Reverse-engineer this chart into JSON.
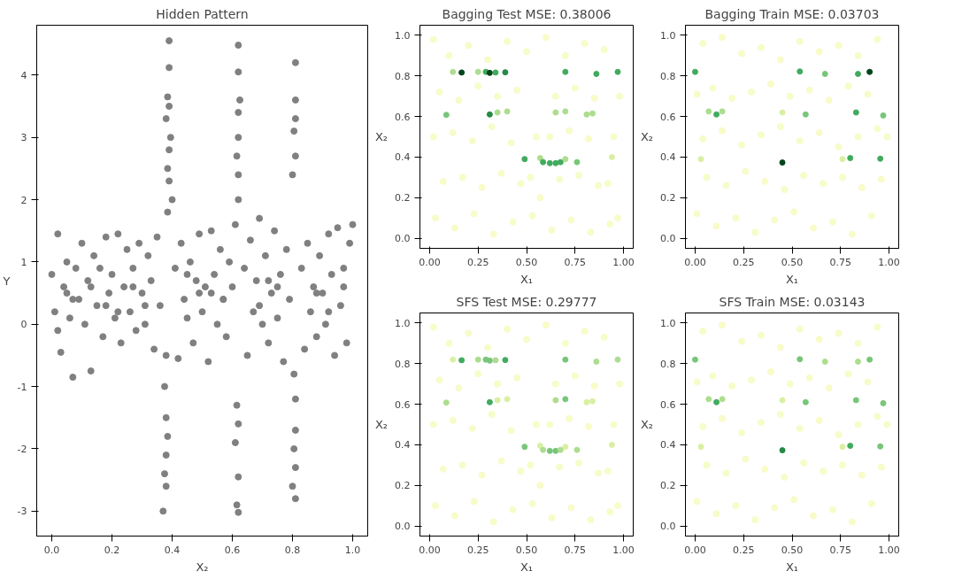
{
  "chart_data": [
    {
      "type": "scatter",
      "title": "Hidden Pattern",
      "xlabel": "X₂",
      "ylabel": "Y",
      "marker": "circle",
      "xlim": [
        -0.05,
        1.05
      ],
      "ylim": [
        -3.4,
        4.8
      ],
      "xticks": [
        {
          "value": 0,
          "label": "0.0"
        },
        {
          "value": 0.2,
          "label": "0.2"
        },
        {
          "value": 0.4,
          "label": "0.4"
        },
        {
          "value": 0.6,
          "label": "0.6"
        },
        {
          "value": 0.8,
          "label": "0.8"
        },
        {
          "value": 1,
          "label": "1.0"
        }
      ],
      "yticks": [
        -3,
        -2,
        -1,
        0,
        1,
        2,
        3,
        4
      ],
      "series": [
        {
          "color": "#808080",
          "x": [
            0.0,
            0.01,
            0.02,
            0.03,
            0.04,
            0.05,
            0.06,
            0.07,
            0.08,
            0.09,
            0.1,
            0.11,
            0.12,
            0.13,
            0.14,
            0.15,
            0.16,
            0.17,
            0.18,
            0.19,
            0.2,
            0.21,
            0.22,
            0.23,
            0.24,
            0.25,
            0.26,
            0.27,
            0.28,
            0.29,
            0.3,
            0.31,
            0.32,
            0.33,
            0.34,
            0.35,
            0.36,
            0.41,
            0.42,
            0.43,
            0.44,
            0.45,
            0.46,
            0.47,
            0.48,
            0.49,
            0.5,
            0.51,
            0.52,
            0.53,
            0.54,
            0.55,
            0.56,
            0.57,
            0.58,
            0.59,
            0.6,
            0.64,
            0.65,
            0.66,
            0.67,
            0.68,
            0.69,
            0.7,
            0.71,
            0.72,
            0.73,
            0.74,
            0.75,
            0.76,
            0.77,
            0.78,
            0.79,
            0.83,
            0.84,
            0.85,
            0.86,
            0.87,
            0.88,
            0.89,
            0.9,
            0.91,
            0.92,
            0.93,
            0.94,
            0.95,
            0.96,
            0.97,
            0.98,
            0.99,
            1.0,
            0.02,
            0.07,
            0.13,
            0.22,
            0.31,
            0.45,
            0.53,
            0.69,
            0.72,
            0.88,
            0.97,
            0.05,
            0.18,
            0.27,
            0.49,
            0.57,
            0.75,
            0.92
          ],
          "values": [
            0.8,
            0.2,
            1.45,
            -0.45,
            0.6,
            1.0,
            0.1,
            -0.85,
            0.9,
            0.4,
            1.3,
            0.0,
            0.7,
            -0.75,
            1.1,
            0.3,
            0.9,
            -0.2,
            1.4,
            0.5,
            0.8,
            0.1,
            1.45,
            -0.3,
            0.6,
            1.2,
            0.2,
            0.9,
            -0.1,
            1.3,
            0.5,
            0.0,
            1.1,
            0.7,
            -0.4,
            1.4,
            0.3,
            0.9,
            -0.55,
            1.3,
            0.4,
            0.1,
            1.0,
            -0.3,
            0.7,
            1.45,
            0.2,
            0.6,
            -0.6,
            1.5,
            0.8,
            0.0,
            1.2,
            0.4,
            -0.2,
            1.0,
            0.6,
            0.9,
            -0.5,
            1.35,
            0.2,
            0.7,
            1.7,
            0.0,
            1.1,
            -0.3,
            0.5,
            1.5,
            0.1,
            0.8,
            -0.6,
            1.2,
            0.4,
            0.9,
            -0.4,
            1.3,
            0.2,
            0.6,
            -0.2,
            1.1,
            0.5,
            0.0,
            1.45,
            0.8,
            -0.5,
            1.55,
            0.3,
            0.9,
            -0.3,
            1.3,
            1.6,
            -0.1,
            0.4,
            0.6,
            0.2,
            0.3,
            0.8,
            0.5,
            0.3,
            0.7,
            0.5,
            0.6,
            0.5,
            0.3,
            0.6,
            0.5,
            0.4,
            0.6,
            0.2
          ]
        },
        {
          "color": "#808080",
          "x": [
            0.39,
            0.39,
            0.385,
            0.39,
            0.38,
            0.395,
            0.39,
            0.385,
            0.39,
            0.4,
            0.385,
            0.38,
            0.375,
            0.38,
            0.385,
            0.38,
            0.375,
            0.38,
            0.37,
            0.62,
            0.62,
            0.625,
            0.62,
            0.62,
            0.615,
            0.62,
            0.62,
            0.61,
            0.615,
            0.62,
            0.61,
            0.62,
            0.615,
            0.62,
            0.81,
            0.81,
            0.81,
            0.805,
            0.81,
            0.8,
            0.805,
            0.81,
            0.81,
            0.805,
            0.81,
            0.8,
            0.81
          ],
          "values": [
            4.55,
            4.12,
            3.65,
            3.5,
            3.3,
            3.0,
            2.8,
            2.5,
            2.3,
            2.0,
            1.8,
            -0.5,
            -1.0,
            -1.5,
            -1.8,
            -2.1,
            -2.4,
            -2.6,
            -3.0,
            4.48,
            4.05,
            3.6,
            3.4,
            3.0,
            2.7,
            2.4,
            2.0,
            1.6,
            -1.3,
            -1.6,
            -1.9,
            -2.45,
            -2.9,
            -3.02,
            4.2,
            3.6,
            3.3,
            3.1,
            2.7,
            2.4,
            -0.8,
            -1.2,
            -1.7,
            -2.0,
            -2.3,
            -2.6,
            -2.8
          ]
        }
      ]
    },
    {
      "type": "scatter",
      "title": "Bagging Test MSE: 0.38006",
      "xlabel": "X₁",
      "ylabel": "X₂",
      "marker": "circle",
      "xlim": [
        -0.05,
        1.05
      ],
      "ylim": [
        -0.05,
        1.05
      ],
      "xticks": [
        {
          "value": 0,
          "label": "0.00"
        },
        {
          "value": 0.25,
          "label": "0.25"
        },
        {
          "value": 0.5,
          "label": "0.50"
        },
        {
          "value": 0.75,
          "label": "0.75"
        },
        {
          "value": 1,
          "label": "1.00"
        }
      ],
      "yticks": [
        {
          "value": 0,
          "label": "0.0"
        },
        {
          "value": 0.2,
          "label": "0.2"
        },
        {
          "value": 0.4,
          "label": "0.4"
        },
        {
          "value": 0.6,
          "label": "0.6"
        },
        {
          "value": 0.8,
          "label": "0.8"
        },
        {
          "value": 1,
          "label": "1.0"
        }
      ],
      "series": [
        {
          "color": "#f7fcc8",
          "x": [
            0.02,
            0.1,
            0.2,
            0.3,
            0.4,
            0.5,
            0.6,
            0.7,
            0.8,
            0.9,
            0.98,
            0.05,
            0.15,
            0.25,
            0.35,
            0.45,
            0.55,
            0.65,
            0.75,
            0.85,
            0.95,
            0.02,
            0.12,
            0.22,
            0.32,
            0.42,
            0.52,
            0.62,
            0.72,
            0.82,
            0.92,
            0.07,
            0.17,
            0.27,
            0.37,
            0.47,
            0.57,
            0.67,
            0.77,
            0.87,
            0.97,
            0.03,
            0.13,
            0.23,
            0.33,
            0.43,
            0.53,
            0.63,
            0.73,
            0.83,
            0.93
          ],
          "values": [
            0.98,
            0.9,
            0.95,
            0.88,
            0.97,
            0.92,
            0.99,
            0.9,
            0.96,
            0.93,
            0.7,
            0.72,
            0.68,
            0.75,
            0.7,
            0.73,
            0.5,
            0.7,
            0.74,
            0.69,
            0.5,
            0.5,
            0.52,
            0.48,
            0.55,
            0.47,
            0.3,
            0.5,
            0.53,
            0.49,
            0.27,
            0.28,
            0.3,
            0.25,
            0.32,
            0.27,
            0.2,
            0.29,
            0.31,
            0.26,
            0.1,
            0.1,
            0.05,
            0.12,
            0.02,
            0.08,
            0.11,
            0.04,
            0.09,
            0.03,
            0.07
          ]
        },
        {
          "x": [
            0.12,
            0.165,
            0.25,
            0.29,
            0.31,
            0.34,
            0.39,
            0.7,
            0.86,
            0.97,
            0.086,
            0.31,
            0.35,
            0.4,
            0.65,
            0.7,
            0.81,
            0.84,
            0.49,
            0.57,
            0.585,
            0.62,
            0.65,
            0.675,
            0.7,
            0.76,
            0.94
          ],
          "values": [
            0.82,
            0.817,
            0.82,
            0.82,
            0.815,
            0.817,
            0.818,
            0.82,
            0.81,
            0.82,
            0.608,
            0.61,
            0.62,
            0.625,
            0.62,
            0.625,
            0.61,
            0.615,
            0.39,
            0.395,
            0.375,
            0.37,
            0.37,
            0.375,
            0.39,
            0.375,
            0.4
          ],
          "colors": [
            "#addd8e",
            "#00441b",
            "#addd8e",
            "#41ab5d",
            "#00441b",
            "#41ab5d",
            "#238b45",
            "#41ab5d",
            "#41ab5d",
            "#41ab5d",
            "#78c679",
            "#238b45",
            "#addd8e",
            "#addd8e",
            "#addd8e",
            "#addd8e",
            "#addd8e",
            "#addd8e",
            "#41ab5d",
            "#addd8e",
            "#41ab5d",
            "#41ab5d",
            "#41ab5d",
            "#41ab5d",
            "#addd8e",
            "#78c679",
            "#d9f0a3"
          ]
        }
      ]
    },
    {
      "type": "scatter",
      "title": "Bagging Train MSE: 0.03703",
      "xlabel": "X₁",
      "ylabel": "X₂",
      "marker": "circle",
      "xlim": [
        -0.05,
        1.05
      ],
      "ylim": [
        -0.05,
        1.05
      ],
      "xticks": [
        {
          "value": 0,
          "label": "0.00"
        },
        {
          "value": 0.25,
          "label": "0.25"
        },
        {
          "value": 0.5,
          "label": "0.50"
        },
        {
          "value": 0.75,
          "label": "0.75"
        },
        {
          "value": 1,
          "label": "1.00"
        }
      ],
      "yticks": [
        {
          "value": 0,
          "label": "0.0"
        },
        {
          "value": 0.2,
          "label": "0.2"
        },
        {
          "value": 0.4,
          "label": "0.4"
        },
        {
          "value": 0.6,
          "label": "0.6"
        },
        {
          "value": 0.8,
          "label": "0.8"
        },
        {
          "value": 1,
          "label": "1.0"
        }
      ],
      "series": [
        {
          "color": "#f7fcc8",
          "x": [
            0.04,
            0.14,
            0.24,
            0.34,
            0.44,
            0.54,
            0.64,
            0.74,
            0.84,
            0.94,
            0.01,
            0.09,
            0.19,
            0.29,
            0.39,
            0.49,
            0.59,
            0.69,
            0.79,
            0.89,
            0.99,
            0.04,
            0.14,
            0.24,
            0.34,
            0.44,
            0.54,
            0.64,
            0.74,
            0.84,
            0.94,
            0.06,
            0.16,
            0.26,
            0.36,
            0.46,
            0.56,
            0.66,
            0.76,
            0.86,
            0.96,
            0.01,
            0.11,
            0.21,
            0.31,
            0.41,
            0.51,
            0.61,
            0.71,
            0.81,
            0.91
          ],
          "values": [
            0.96,
            0.99,
            0.91,
            0.94,
            0.88,
            0.97,
            0.92,
            0.95,
            0.9,
            0.98,
            0.71,
            0.74,
            0.69,
            0.72,
            0.76,
            0.7,
            0.73,
            0.68,
            0.75,
            0.71,
            0.5,
            0.49,
            0.53,
            0.46,
            0.51,
            0.55,
            0.48,
            0.52,
            0.45,
            0.5,
            0.54,
            0.3,
            0.26,
            0.33,
            0.28,
            0.24,
            0.31,
            0.27,
            0.3,
            0.25,
            0.29,
            0.12,
            0.06,
            0.1,
            0.03,
            0.09,
            0.13,
            0.05,
            0.08,
            0.02,
            0.11
          ]
        },
        {
          "x": [
            0.0,
            0.54,
            0.67,
            0.84,
            0.9,
            0.07,
            0.11,
            0.14,
            0.45,
            0.57,
            0.83,
            0.97,
            0.45,
            0.8,
            0.955,
            0.76,
            0.03
          ],
          "values": [
            0.82,
            0.822,
            0.81,
            0.81,
            0.82,
            0.625,
            0.61,
            0.625,
            0.62,
            0.61,
            0.62,
            0.605,
            0.373,
            0.395,
            0.392,
            0.39,
            0.39
          ],
          "colors": [
            "#41ab5d",
            "#41ab5d",
            "#78c679",
            "#41ab5d",
            "#00441b",
            "#addd8e",
            "#41ab5d",
            "#addd8e",
            "#d9f0a3",
            "#78c679",
            "#41ab5d",
            "#78c679",
            "#00441b",
            "#41ab5d",
            "#41ab5d",
            "#d9f0a3",
            "#d9f0a3"
          ]
        }
      ]
    },
    {
      "type": "scatter",
      "title": "SFS Test MSE: 0.29777",
      "xlabel": "X₁",
      "ylabel": "X₂",
      "marker": "circle",
      "xlim": [
        -0.05,
        1.05
      ],
      "ylim": [
        -0.05,
        1.05
      ],
      "xticks": [
        {
          "value": 0,
          "label": "0.00"
        },
        {
          "value": 0.25,
          "label": "0.25"
        },
        {
          "value": 0.5,
          "label": "0.50"
        },
        {
          "value": 0.75,
          "label": "0.75"
        },
        {
          "value": 1,
          "label": "1.00"
        }
      ],
      "yticks": [
        {
          "value": 0,
          "label": "0.0"
        },
        {
          "value": 0.2,
          "label": "0.2"
        },
        {
          "value": 0.4,
          "label": "0.4"
        },
        {
          "value": 0.6,
          "label": "0.6"
        },
        {
          "value": 0.8,
          "label": "0.8"
        },
        {
          "value": 1,
          "label": "1.0"
        }
      ],
      "series": [
        {
          "color": "#f7fcc8",
          "x": [
            0.02,
            0.1,
            0.2,
            0.3,
            0.4,
            0.5,
            0.6,
            0.7,
            0.8,
            0.9,
            0.98,
            0.05,
            0.15,
            0.25,
            0.35,
            0.45,
            0.55,
            0.65,
            0.75,
            0.85,
            0.95,
            0.02,
            0.12,
            0.22,
            0.32,
            0.42,
            0.52,
            0.62,
            0.72,
            0.82,
            0.92,
            0.07,
            0.17,
            0.27,
            0.37,
            0.47,
            0.57,
            0.67,
            0.77,
            0.87,
            0.97,
            0.03,
            0.13,
            0.23,
            0.33,
            0.43,
            0.53,
            0.63,
            0.73,
            0.83,
            0.93
          ],
          "values": [
            0.98,
            0.9,
            0.95,
            0.88,
            0.97,
            0.92,
            0.99,
            0.9,
            0.96,
            0.93,
            0.7,
            0.72,
            0.68,
            0.75,
            0.7,
            0.73,
            0.5,
            0.7,
            0.74,
            0.69,
            0.5,
            0.5,
            0.52,
            0.48,
            0.55,
            0.47,
            0.3,
            0.5,
            0.53,
            0.49,
            0.27,
            0.28,
            0.3,
            0.25,
            0.32,
            0.27,
            0.2,
            0.29,
            0.31,
            0.26,
            0.1,
            0.1,
            0.05,
            0.12,
            0.02,
            0.08,
            0.11,
            0.04,
            0.09,
            0.03,
            0.07
          ]
        },
        {
          "x": [
            0.12,
            0.165,
            0.25,
            0.29,
            0.31,
            0.34,
            0.39,
            0.7,
            0.86,
            0.97,
            0.086,
            0.31,
            0.35,
            0.4,
            0.65,
            0.7,
            0.81,
            0.84,
            0.49,
            0.57,
            0.585,
            0.62,
            0.65,
            0.675,
            0.7,
            0.76,
            0.94
          ],
          "values": [
            0.82,
            0.817,
            0.82,
            0.82,
            0.815,
            0.817,
            0.818,
            0.82,
            0.81,
            0.82,
            0.608,
            0.61,
            0.62,
            0.625,
            0.62,
            0.625,
            0.61,
            0.615,
            0.39,
            0.395,
            0.375,
            0.37,
            0.37,
            0.375,
            0.39,
            0.375,
            0.4
          ],
          "colors": [
            "#d9f0a3",
            "#41ab5d",
            "#addd8e",
            "#78c679",
            "#78c679",
            "#addd8e",
            "#41ab5d",
            "#78c679",
            "#addd8e",
            "#addd8e",
            "#addd8e",
            "#41ab5d",
            "#d9f0a3",
            "#d9f0a3",
            "#addd8e",
            "#78c679",
            "#d9f0a3",
            "#d9f0a3",
            "#78c679",
            "#d9f0a3",
            "#addd8e",
            "#78c679",
            "#78c679",
            "#addd8e",
            "#d9f0a3",
            "#addd8e",
            "#d9f0a3"
          ]
        }
      ]
    },
    {
      "type": "scatter",
      "title": "SFS Train MSE: 0.03143",
      "xlabel": "X₁",
      "ylabel": "X₂",
      "marker": "circle",
      "xlim": [
        -0.05,
        1.05
      ],
      "ylim": [
        -0.05,
        1.05
      ],
      "xticks": [
        {
          "value": 0,
          "label": "0.00"
        },
        {
          "value": 0.25,
          "label": "0.25"
        },
        {
          "value": 0.5,
          "label": "0.50"
        },
        {
          "value": 0.75,
          "label": "0.75"
        },
        {
          "value": 1,
          "label": "1.00"
        }
      ],
      "yticks": [
        {
          "value": 0,
          "label": "0.0"
        },
        {
          "value": 0.2,
          "label": "0.2"
        },
        {
          "value": 0.4,
          "label": "0.4"
        },
        {
          "value": 0.6,
          "label": "0.6"
        },
        {
          "value": 0.8,
          "label": "0.8"
        },
        {
          "value": 1,
          "label": "1.0"
        }
      ],
      "series": [
        {
          "color": "#f7fcc8",
          "x": [
            0.04,
            0.14,
            0.24,
            0.34,
            0.44,
            0.54,
            0.64,
            0.74,
            0.84,
            0.94,
            0.01,
            0.09,
            0.19,
            0.29,
            0.39,
            0.49,
            0.59,
            0.69,
            0.79,
            0.89,
            0.99,
            0.04,
            0.14,
            0.24,
            0.34,
            0.44,
            0.54,
            0.64,
            0.74,
            0.84,
            0.94,
            0.06,
            0.16,
            0.26,
            0.36,
            0.46,
            0.56,
            0.66,
            0.76,
            0.86,
            0.96,
            0.01,
            0.11,
            0.21,
            0.31,
            0.41,
            0.51,
            0.61,
            0.71,
            0.81,
            0.91
          ],
          "values": [
            0.96,
            0.99,
            0.91,
            0.94,
            0.88,
            0.97,
            0.92,
            0.95,
            0.9,
            0.98,
            0.71,
            0.74,
            0.69,
            0.72,
            0.76,
            0.7,
            0.73,
            0.68,
            0.75,
            0.71,
            0.5,
            0.49,
            0.53,
            0.46,
            0.51,
            0.55,
            0.48,
            0.52,
            0.45,
            0.5,
            0.54,
            0.3,
            0.26,
            0.33,
            0.28,
            0.24,
            0.31,
            0.27,
            0.3,
            0.25,
            0.29,
            0.12,
            0.06,
            0.1,
            0.03,
            0.09,
            0.13,
            0.05,
            0.08,
            0.02,
            0.11
          ]
        },
        {
          "x": [
            0.0,
            0.54,
            0.67,
            0.84,
            0.9,
            0.07,
            0.11,
            0.14,
            0.45,
            0.57,
            0.83,
            0.97,
            0.45,
            0.8,
            0.955,
            0.76,
            0.03
          ],
          "values": [
            0.82,
            0.822,
            0.81,
            0.81,
            0.82,
            0.625,
            0.61,
            0.625,
            0.62,
            0.61,
            0.62,
            0.605,
            0.373,
            0.395,
            0.392,
            0.39,
            0.39
          ],
          "colors": [
            "#78c679",
            "#78c679",
            "#addd8e",
            "#addd8e",
            "#78c679",
            "#addd8e",
            "#41ab5d",
            "#addd8e",
            "#d9f0a3",
            "#78c679",
            "#78c679",
            "#78c679",
            "#238b45",
            "#41ab5d",
            "#78c679",
            "#d9f0a3",
            "#d9f0a3"
          ]
        }
      ]
    }
  ]
}
